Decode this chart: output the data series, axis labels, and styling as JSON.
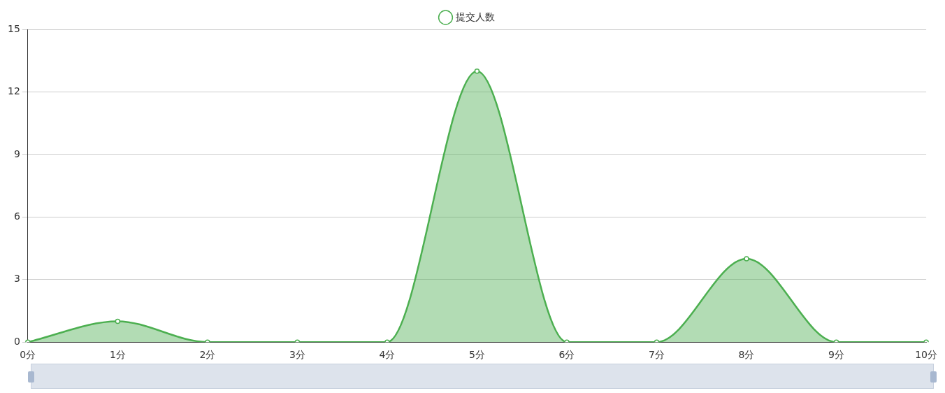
{
  "chart_data": {
    "type": "area",
    "categories": [
      "0分",
      "1分",
      "2分",
      "3分",
      "4分",
      "5分",
      "6分",
      "7分",
      "8分",
      "9分",
      "10分"
    ],
    "series": [
      {
        "name": "提交人数",
        "color": "#4caf50",
        "values": [
          0,
          1,
          0,
          0,
          0,
          13,
          0,
          0,
          4,
          0,
          0
        ]
      }
    ],
    "ylim": [
      0,
      15
    ],
    "yticks": [
      0,
      3,
      6,
      9,
      12,
      15
    ],
    "grid": "y",
    "legend": "top",
    "marker": "circle",
    "line_style": "solid"
  }
}
